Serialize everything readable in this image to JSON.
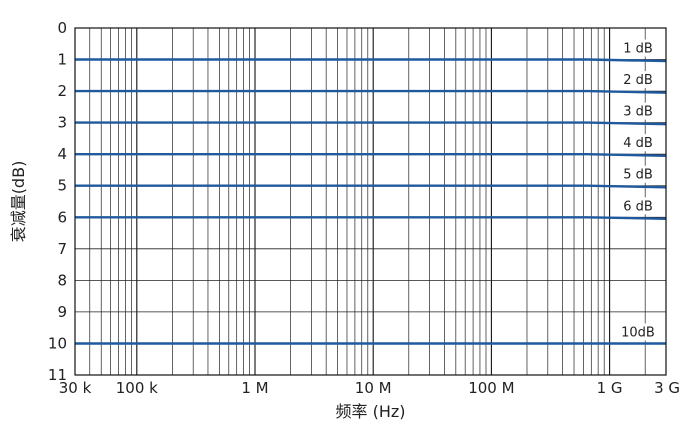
{
  "chart_data": {
    "type": "line",
    "xlabel": "频率 (Hz)",
    "ylabel": "衰减量(dB)",
    "x_scale": "log",
    "xlim": [
      30000,
      3000000000
    ],
    "ylim": [
      0,
      11
    ],
    "y_inverted": true,
    "grid": true,
    "x_ticks": [
      {
        "value": 30000,
        "label": "30 k"
      },
      {
        "value": 100000,
        "label": "100 k"
      },
      {
        "value": 1000000,
        "label": "1 M"
      },
      {
        "value": 10000000,
        "label": "10 M"
      },
      {
        "value": 100000000,
        "label": "100 M"
      },
      {
        "value": 1000000000,
        "label": "1 G"
      },
      {
        "value": 3000000000,
        "label": "3 G"
      }
    ],
    "y_ticks": [
      "0",
      "1",
      "2",
      "3",
      "4",
      "5",
      "6",
      "7",
      "8",
      "9",
      "10",
      "11"
    ],
    "series_color": "#1f5a9e",
    "series": [
      {
        "name": "1 dB",
        "x": [
          30000,
          650000000,
          3000000000
        ],
        "y": [
          1,
          1,
          1.05
        ]
      },
      {
        "name": "2 dB",
        "x": [
          30000,
          650000000,
          3000000000
        ],
        "y": [
          2,
          2,
          2.05
        ]
      },
      {
        "name": "3 dB",
        "x": [
          30000,
          650000000,
          3000000000
        ],
        "y": [
          3,
          3,
          3.05
        ]
      },
      {
        "name": "4 dB",
        "x": [
          30000,
          650000000,
          3000000000
        ],
        "y": [
          4,
          4,
          4.05
        ]
      },
      {
        "name": "5 dB",
        "x": [
          30000,
          650000000,
          3000000000
        ],
        "y": [
          5,
          5,
          5.05
        ]
      },
      {
        "name": "6 dB",
        "x": [
          30000,
          650000000,
          3000000000
        ],
        "y": [
          6,
          6,
          6.05
        ]
      },
      {
        "name": "10dB",
        "x": [
          30000,
          3000000000
        ],
        "y": [
          10,
          10
        ]
      }
    ]
  }
}
